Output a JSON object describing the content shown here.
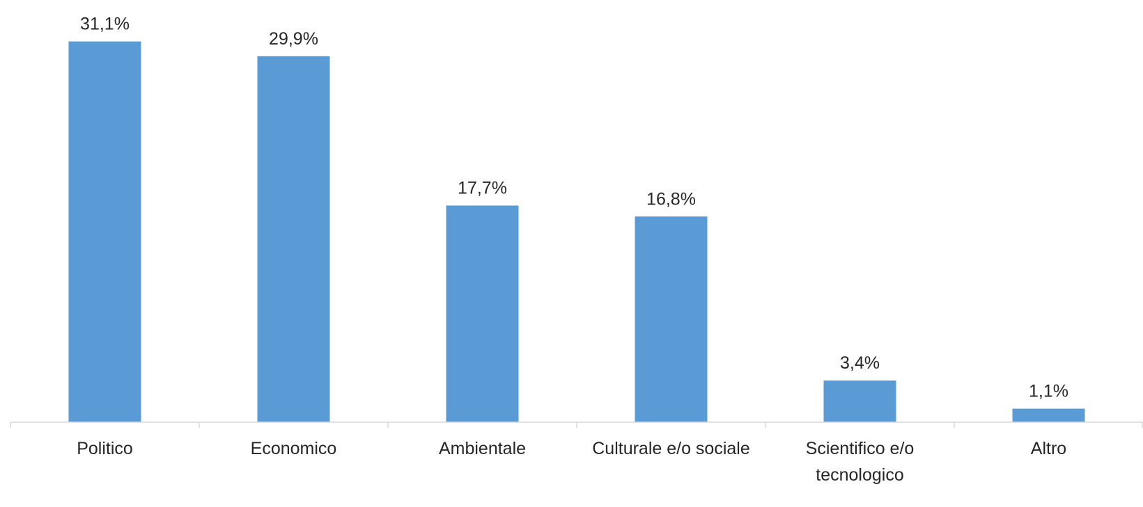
{
  "chart_data": {
    "type": "bar",
    "title": "",
    "xlabel": "",
    "ylabel": "",
    "categories": [
      "Politico",
      "Economico",
      "Ambientale",
      "Culturale e/o sociale",
      "Scientifico e/o tecnologico",
      "Altro"
    ],
    "category_label_lines": [
      [
        "Politico"
      ],
      [
        "Economico"
      ],
      [
        "Ambientale"
      ],
      [
        "Culturale e/o sociale"
      ],
      [
        "Scientifico e/o",
        "tecnologico"
      ],
      [
        "Altro"
      ]
    ],
    "values": [
      31.1,
      29.9,
      17.7,
      16.8,
      3.4,
      1.1
    ],
    "value_labels": [
      "31,1%",
      "29,9%",
      "17,7%",
      "16,8%",
      "3,4%",
      "1,1%"
    ],
    "ylim": [
      0,
      35
    ],
    "grid": false,
    "legend": "none",
    "bar_color": "#5b9bd5",
    "axis_color": "#d9d9d9",
    "text_color": "#262626"
  }
}
